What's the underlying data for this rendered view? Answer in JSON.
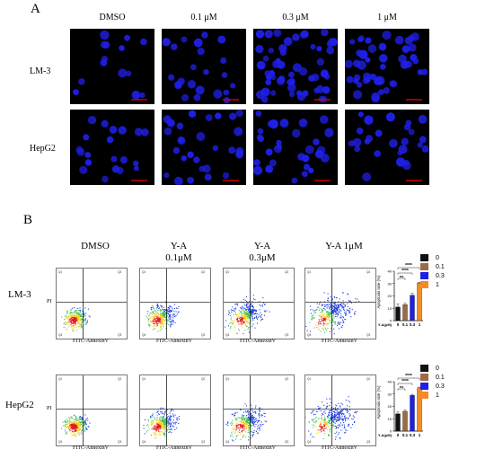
{
  "panel_a": {
    "letter": "A",
    "columns": [
      "DMSO",
      "0.1 μM",
      "0.3 μM",
      "1 μM"
    ],
    "rows": [
      "LM-3",
      "HepG2"
    ],
    "scale_bar_color": "#cc0000",
    "cell_color": "#1f1fe6"
  },
  "panel_b": {
    "letter": "B",
    "columns": [
      {
        "line1": "DMSO",
        "line2": ""
      },
      {
        "line1": "Y-A",
        "line2": "0.1μM"
      },
      {
        "line1": "Y-A",
        "line2": "0.3μM"
      },
      {
        "line1": "Y-A 1μM",
        "line2": ""
      }
    ],
    "rows": [
      "LM-3",
      "HepG2"
    ],
    "x_axis_label": "FITC-AnnexinV",
    "y_axis_label": "PI",
    "quadrant_labels": [
      "Q1",
      "Q2",
      "Q3",
      "Q4"
    ]
  },
  "chart_data": [
    {
      "type": "bar",
      "row": "LM-3",
      "categories": [
        "0",
        "0.1",
        "0.3",
        "1"
      ],
      "values": [
        11,
        13,
        20.5,
        30.5
      ],
      "errors": [
        2.5,
        1,
        1.5,
        0.5
      ],
      "colors": [
        "#111111",
        "#9c6b44",
        "#1f1fe6",
        "#f28c28"
      ],
      "xlabel": "Y-A(μM)",
      "ylabel": "Apoptosis rate (%)",
      "yticks": [
        0,
        10,
        20,
        30,
        40
      ],
      "ylim": [
        0,
        40
      ],
      "significance": [
        {
          "from": "0",
          "to": "0.1",
          "label": "ns"
        },
        {
          "from": "0",
          "to": "0.3",
          "label": "****"
        },
        {
          "from": "0",
          "to": "1",
          "label": "****"
        }
      ],
      "legend": [
        "0",
        "0.1",
        "0.3",
        "1"
      ]
    },
    {
      "type": "bar",
      "row": "HepG2",
      "categories": [
        "0",
        "0.1",
        "0.3",
        "1"
      ],
      "values": [
        14,
        16,
        29,
        35
      ],
      "errors": [
        1.5,
        1,
        0.8,
        0.6
      ],
      "colors": [
        "#111111",
        "#9c6b44",
        "#1f1fe6",
        "#f28c28"
      ],
      "xlabel": "Y-A(μM)",
      "ylabel": "Apoptosis rate (%)",
      "yticks": [
        0,
        10,
        20,
        30,
        40
      ],
      "ylim": [
        0,
        40
      ],
      "significance": [
        {
          "from": "0",
          "to": "0.1",
          "label": "ns"
        },
        {
          "from": "0",
          "to": "0.3",
          "label": "****"
        },
        {
          "from": "0",
          "to": "1",
          "label": "****"
        }
      ],
      "legend": [
        "0",
        "0.1",
        "0.3",
        "1"
      ]
    }
  ]
}
